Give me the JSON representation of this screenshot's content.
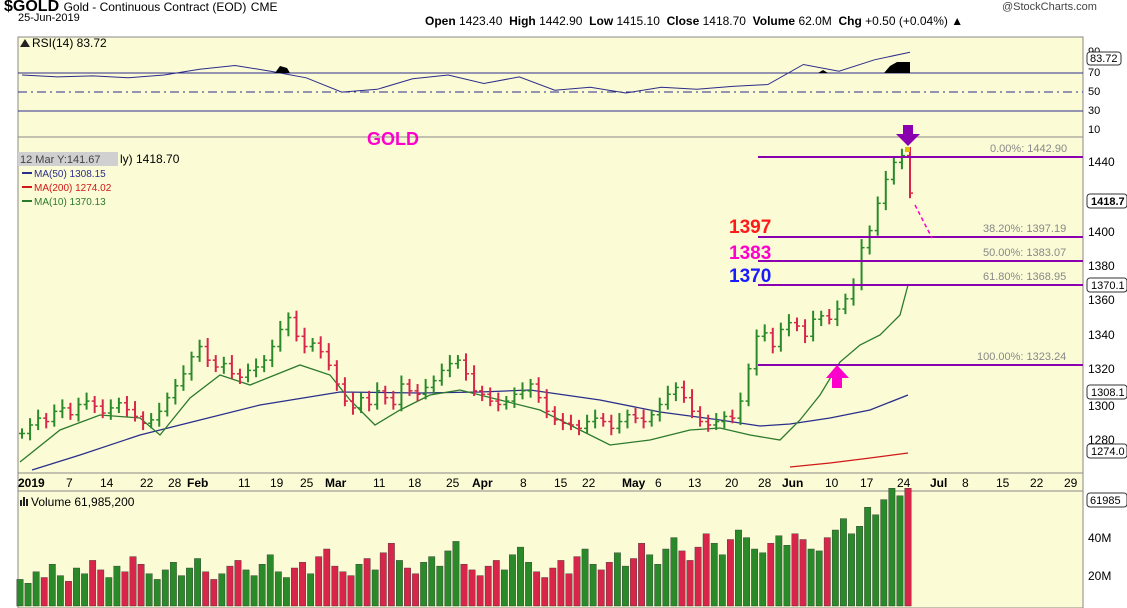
{
  "header": {
    "symbol": "$GOLD",
    "description": "Gold - Continuous Contract (EOD)",
    "exchange": "CME",
    "date": "25-Jun-2019",
    "source": "@StockCharts.com",
    "open_label": "Open",
    "open": "1423.40",
    "high_label": "High",
    "high": "1442.90",
    "low_label": "Low",
    "low": "1415.10",
    "close_label": "Close",
    "close": "1418.70",
    "volume_label": "Volume",
    "volume": "62.0M",
    "chg_label": "Chg",
    "chg": "+0.50 (+0.04%)"
  },
  "colors": {
    "panel_bg": "#fbfbd6",
    "up": "#2a8a2a",
    "down": "#d8264a",
    "ma50": "#2a2f8a",
    "ma200": "#d01818",
    "ma10": "#2c7a2c",
    "fib": "#8a00b0",
    "magenta": "#ff00cc",
    "red_label": "#ff1a1a",
    "blue_label": "#1a1aff"
  },
  "chart_data": [
    {
      "type": "line",
      "name": "RSI panel",
      "label": "RSI(14) 83.72",
      "ylim": [
        0,
        100
      ],
      "yticks": [
        10,
        30,
        50,
        70,
        90
      ],
      "reference_lines": [
        30,
        50,
        70
      ],
      "current_value": "83.72",
      "x": [
        "2019-01-02",
        "2019-01-09",
        "2019-01-16",
        "2019-01-23",
        "2019-01-30",
        "2019-02-06",
        "2019-02-13",
        "2019-02-20",
        "2019-02-27",
        "2019-03-06",
        "2019-03-13",
        "2019-03-20",
        "2019-03-27",
        "2019-04-03",
        "2019-04-10",
        "2019-04-17",
        "2019-04-24",
        "2019-05-01",
        "2019-05-08",
        "2019-05-15",
        "2019-05-22",
        "2019-05-29",
        "2019-06-05",
        "2019-06-12",
        "2019-06-19",
        "2019-06-25"
      ],
      "values": [
        60,
        58,
        59,
        57,
        60,
        66,
        70,
        64,
        57,
        42,
        45,
        56,
        60,
        51,
        58,
        44,
        47,
        41,
        47,
        45,
        48,
        50,
        71,
        64,
        76,
        84
      ]
    },
    {
      "type": "bar",
      "name": "Price panel",
      "title": "GOLD",
      "ylim": [
        1255,
        1455
      ],
      "yticks": [
        1280,
        1300,
        1320,
        1340,
        1360,
        1380,
        1400,
        1420,
        1440
      ],
      "last_price_label": "1418.70",
      "cursor_readout": "12 Mar Y:141.67",
      "x_tick_labels": [
        "2019",
        "7",
        "14",
        "22",
        "28",
        "Feb",
        "11",
        "19",
        "25",
        "Mar",
        "11",
        "18",
        "25",
        "Apr",
        "8",
        "15",
        "22",
        "May",
        "6",
        "13",
        "20",
        "28",
        "Jun",
        "10",
        "17",
        "24",
        "Jul",
        "8",
        "15",
        "22",
        "29"
      ],
      "series": [
        {
          "name": "MA(50) 1308.15",
          "x": [
            "2019-01-15",
            "2019-02-15",
            "2019-03-15",
            "2019-04-05",
            "2019-04-20",
            "2019-05-10",
            "2019-05-25",
            "2019-06-05",
            "2019-06-15",
            "2019-06-25"
          ],
          "values": [
            1258,
            1284,
            1301,
            1306,
            1306,
            1298,
            1291,
            1293,
            1297,
            1308
          ]
        },
        {
          "name": "MA(200) 1274.02",
          "x": [
            "2019-06-01",
            "2019-06-10",
            "2019-06-18",
            "2019-06-25"
          ],
          "values": [
            1259,
            1264,
            1269,
            1274
          ]
        },
        {
          "name": "MA(10) 1370.13",
          "x": [
            "2019-01-02",
            "2019-01-20",
            "2019-02-05",
            "2019-02-20",
            "2019-03-05",
            "2019-03-15",
            "2019-03-28",
            "2019-04-10",
            "2019-04-25",
            "2019-05-10",
            "2019-05-22",
            "2019-06-03",
            "2019-06-12",
            "2019-06-20",
            "2019-06-25"
          ],
          "values": [
            1256,
            1285,
            1300,
            1326,
            1310,
            1296,
            1306,
            1305,
            1290,
            1283,
            1282,
            1305,
            1324,
            1345,
            1370
          ]
        }
      ],
      "annotations": {
        "fib_levels": [
          {
            "label": "0.00%: 1442.90",
            "value": 1442.9
          },
          {
            "label": "38.20%: 1397.19",
            "value": 1397.19
          },
          {
            "label": "50.00%: 1383.07",
            "value": 1383.07
          },
          {
            "label": "61.80%: 1368.95",
            "value": 1368.95
          },
          {
            "label": "100.00%: 1323.24",
            "value": 1323.24
          }
        ],
        "level_labels": [
          {
            "text": "1397",
            "value": 1397
          },
          {
            "text": "1383",
            "value": 1383
          },
          {
            "text": "1370",
            "value": 1370
          }
        ],
        "right_axis_tags": [
          "1418.7",
          "1370.1",
          "1308.1",
          "1274.0"
        ]
      }
    },
    {
      "type": "bar",
      "name": "Volume panel",
      "label": "Volume 61,985,200",
      "yticks": [
        "20M",
        "40M"
      ],
      "current_value_tag": "61985",
      "units": "M"
    }
  ]
}
